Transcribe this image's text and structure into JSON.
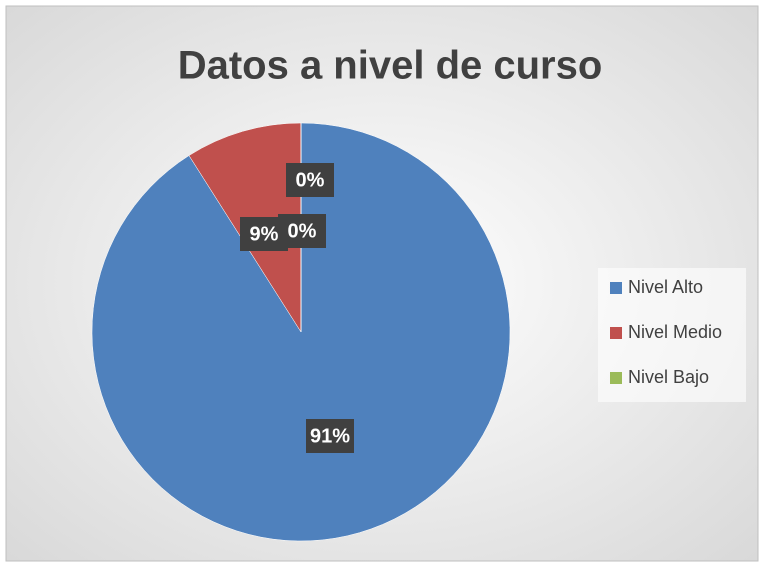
{
  "chart_data": {
    "type": "pie",
    "title": "Datos a nivel de curso",
    "categories": [
      "Nivel Alto",
      "Nivel Medio",
      "Nivel Bajo",
      null
    ],
    "values": [
      91,
      9,
      0,
      0
    ],
    "value_labels": [
      "91%",
      "9%",
      "0%",
      "0%"
    ],
    "colors": [
      "#4f81bd",
      "#c0504d",
      "#9bbb59"
    ],
    "legend": "right"
  }
}
